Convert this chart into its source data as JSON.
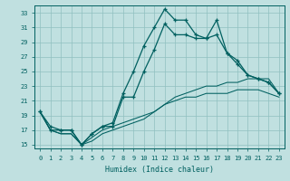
{
  "xlabel": "Humidex (Indice chaleur)",
  "xlim": [
    -0.5,
    23.5
  ],
  "ylim": [
    14.5,
    34.0
  ],
  "bg_color": "#c0e0e0",
  "grid_color": "#90c0c0",
  "line_color": "#006060",
  "xticks": [
    0,
    1,
    2,
    3,
    4,
    5,
    6,
    7,
    8,
    9,
    10,
    11,
    12,
    13,
    14,
    15,
    16,
    17,
    18,
    19,
    20,
    21,
    22,
    23
  ],
  "yticks": [
    15,
    17,
    19,
    21,
    23,
    25,
    27,
    29,
    31,
    33
  ],
  "line1_y": [
    19.5,
    17.5,
    17.0,
    17.0,
    15.0,
    16.5,
    17.5,
    18.0,
    22.0,
    25.0,
    28.5,
    31.0,
    33.5,
    32.0,
    32.0,
    30.0,
    29.5,
    32.0,
    27.5,
    26.5,
    24.5,
    24.0,
    23.5,
    22.0
  ],
  "line2_y": [
    19.5,
    17.0,
    17.0,
    17.0,
    15.0,
    16.5,
    17.5,
    17.5,
    21.5,
    21.5,
    25.0,
    28.0,
    31.5,
    30.0,
    30.0,
    29.5,
    29.5,
    30.0,
    27.5,
    26.0,
    24.5,
    24.0,
    23.5,
    22.0
  ],
  "line3_y": [
    19.5,
    17.0,
    16.5,
    16.5,
    15.0,
    16.0,
    17.0,
    17.5,
    18.0,
    18.5,
    19.0,
    19.5,
    20.5,
    21.5,
    22.0,
    22.5,
    23.0,
    23.0,
    23.5,
    23.5,
    24.0,
    24.0,
    24.0,
    22.0
  ],
  "line4_y": [
    19.5,
    17.0,
    16.5,
    16.5,
    15.0,
    15.5,
    16.5,
    17.0,
    17.5,
    18.0,
    18.5,
    19.5,
    20.5,
    21.0,
    21.5,
    21.5,
    22.0,
    22.0,
    22.0,
    22.5,
    22.5,
    22.5,
    22.0,
    21.5
  ]
}
